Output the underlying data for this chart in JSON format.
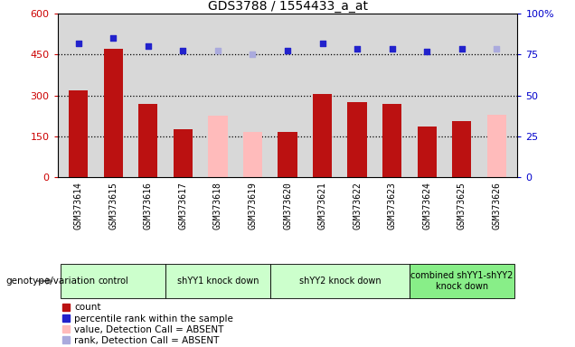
{
  "title": "GDS3788 / 1554433_a_at",
  "samples": [
    "GSM373614",
    "GSM373615",
    "GSM373616",
    "GSM373617",
    "GSM373618",
    "GSM373619",
    "GSM373620",
    "GSM373621",
    "GSM373622",
    "GSM373623",
    "GSM373624",
    "GSM373625",
    "GSM373626"
  ],
  "count_values": [
    320,
    470,
    270,
    175,
    null,
    null,
    165,
    305,
    275,
    270,
    185,
    205,
    null
  ],
  "absent_value": [
    null,
    null,
    null,
    null,
    225,
    165,
    null,
    null,
    null,
    null,
    null,
    null,
    230
  ],
  "percentile_rank": [
    490,
    510,
    480,
    465,
    null,
    null,
    465,
    490,
    472,
    472,
    462,
    470,
    null
  ],
  "absent_rank": [
    null,
    null,
    null,
    null,
    465,
    450,
    null,
    null,
    null,
    null,
    null,
    null,
    470
  ],
  "ylim_left": [
    0,
    600
  ],
  "ylim_right": [
    0,
    100
  ],
  "yticks_left": [
    0,
    150,
    300,
    450,
    600
  ],
  "yticks_right": [
    0,
    25,
    50,
    75,
    100
  ],
  "bar_color_red": "#bb1111",
  "bar_color_pink": "#ffbbbb",
  "dot_color_blue": "#2222cc",
  "dot_color_lightblue": "#aaaadd",
  "groups": [
    {
      "label": "control",
      "start": 0,
      "end": 2,
      "color": "#ccffcc"
    },
    {
      "label": "shYY1 knock down",
      "start": 3,
      "end": 5,
      "color": "#ccffcc"
    },
    {
      "label": "shYY2 knock down",
      "start": 6,
      "end": 9,
      "color": "#ccffcc"
    },
    {
      "label": "combined shYY1-shYY2\nknock down",
      "start": 10,
      "end": 12,
      "color": "#88ee88"
    }
  ],
  "legend_items": [
    {
      "label": "count",
      "color": "#bb1111"
    },
    {
      "label": "percentile rank within the sample",
      "color": "#2222cc"
    },
    {
      "label": "value, Detection Call = ABSENT",
      "color": "#ffbbbb"
    },
    {
      "label": "rank, Detection Call = ABSENT",
      "color": "#aaaadd"
    }
  ],
  "bar_width": 0.55,
  "plot_bg": "#d8d8d8",
  "xtick_bg": "#cccccc",
  "ylabel_left_color": "#cc0000",
  "ylabel_right_color": "#0000cc"
}
